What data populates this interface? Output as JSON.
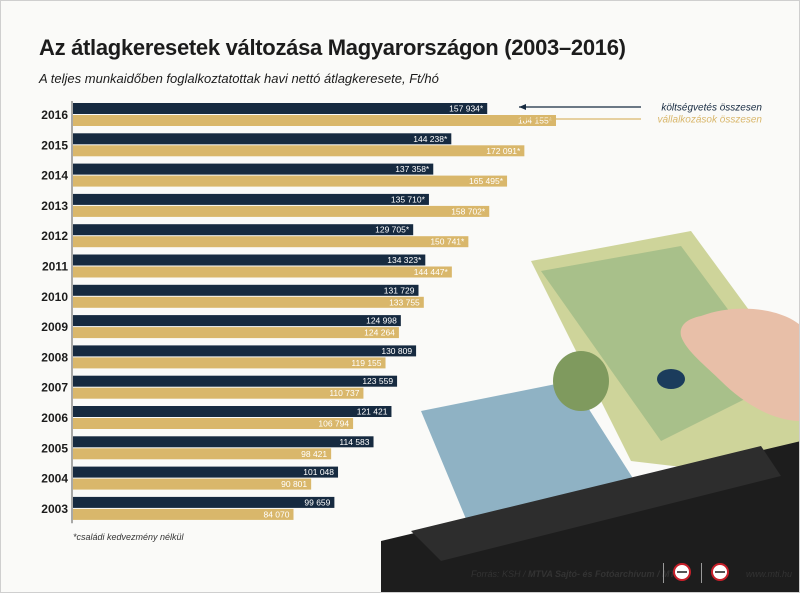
{
  "title": "Az átlagkeresetek változása Magyarországon (2003–2016)",
  "subtitle": "A teljes munkaidőben foglalkoztatottak havi nettó átlagkeresete, Ft/hó",
  "footnote": "*családi kedvezmény nélkül",
  "source": {
    "prefix": "Forrás: KSH /",
    "agency": "MTVA Sajtó- és Fotóarchívum / MTI",
    "site": "www.mti.hu"
  },
  "colors": {
    "budget": "#162a40",
    "business": "#d9b76b",
    "budget_text": "#ffffff",
    "business_text": "#ffffff"
  },
  "chart_data": {
    "type": "bar",
    "orientation": "horizontal",
    "categories": [
      "2016",
      "2015",
      "2014",
      "2013",
      "2012",
      "2011",
      "2010",
      "2009",
      "2008",
      "2007",
      "2006",
      "2005",
      "2004",
      "2003"
    ],
    "series": [
      {
        "name": "költségvetés összesen",
        "values": [
          157934,
          144238,
          137358,
          135710,
          129705,
          134323,
          131729,
          124998,
          130809,
          123559,
          121421,
          114583,
          101048,
          99659
        ],
        "labels": [
          "157 934*",
          "144 238*",
          "137 358*",
          "135 710*",
          "129 705*",
          "134 323*",
          "131 729",
          "124 998",
          "130 809",
          "123 559",
          "121 421",
          "114 583",
          "101 048",
          "99 659"
        ]
      },
      {
        "name": "vállalkozások összesen",
        "values": [
          184155,
          172091,
          165495,
          158702,
          150741,
          144447,
          133755,
          124264,
          119155,
          110737,
          106794,
          98421,
          90801,
          84070
        ],
        "labels": [
          "184 155*",
          "172 091*",
          "165 495*",
          "158 702*",
          "150 741*",
          "144 447*",
          "133 755",
          "124 264",
          "119 155",
          "110 737",
          "106 794",
          "98 421",
          "90 801",
          "84 070"
        ]
      }
    ],
    "legend_position": "top-right",
    "xlim": [
      0,
      184155
    ]
  }
}
